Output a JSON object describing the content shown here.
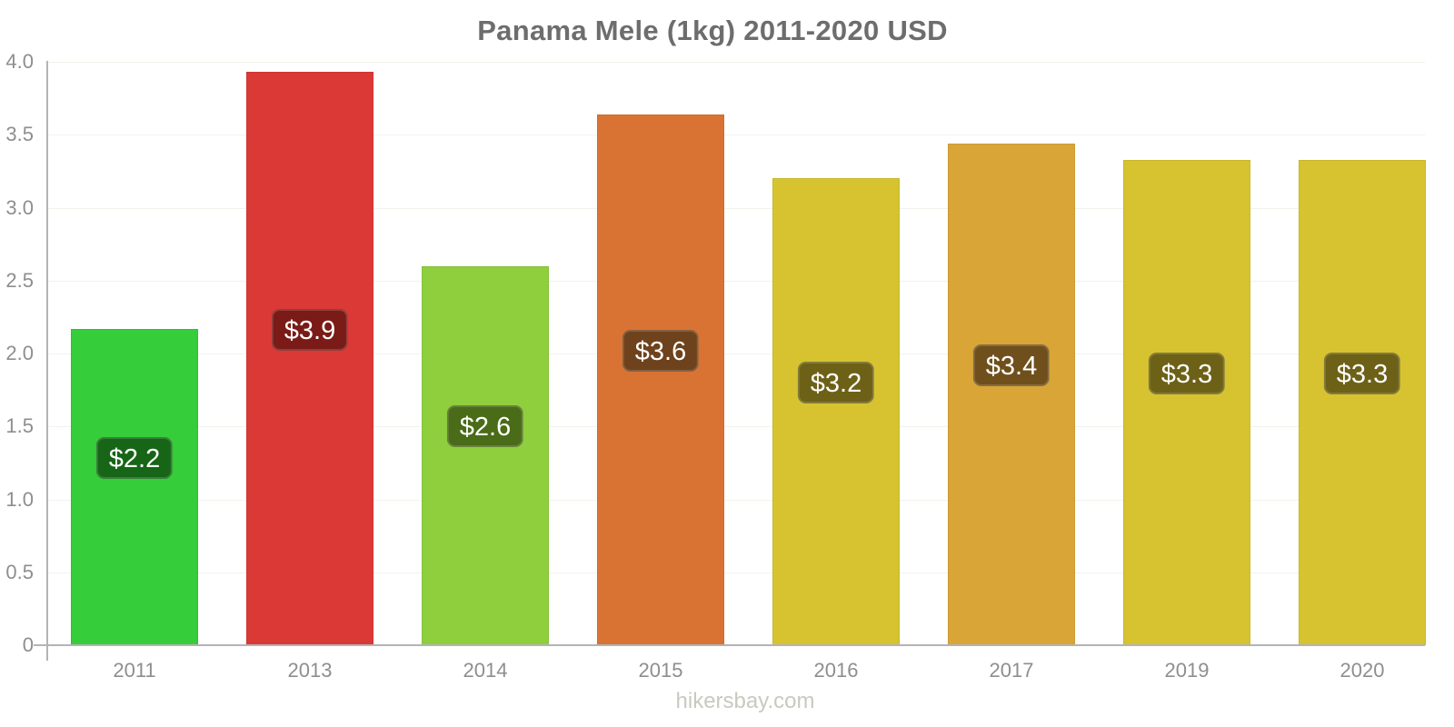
{
  "chart_data": {
    "type": "bar",
    "title": "Panama Mele (1kg) 2011-2020 USD",
    "categories": [
      "2011",
      "2013",
      "2014",
      "2015",
      "2016",
      "2017",
      "2019",
      "2020"
    ],
    "values": [
      2.17,
      3.93,
      2.6,
      3.64,
      3.2,
      3.44,
      3.33,
      3.33
    ],
    "bar_labels": [
      "$2.2",
      "$3.9",
      "$2.6",
      "$3.6",
      "$3.2",
      "$3.4",
      "$3.3",
      "$3.3"
    ],
    "bar_colors": [
      "#35cd39",
      "#da3936",
      "#8fce3d",
      "#d97333",
      "#d6c32f",
      "#d9a537",
      "#d6c32f",
      "#d6c32f"
    ],
    "label_box_colors": [
      "#176517",
      "#7a1b17",
      "#4a6b17",
      "#6e421c",
      "#6d6117",
      "#6f501d",
      "#6d6117",
      "#6d6117"
    ],
    "xlabel": "",
    "ylabel": "",
    "ylim": [
      0,
      4
    ],
    "ytick_labels": [
      "0",
      "0.5",
      "1.0",
      "1.5",
      "2.0",
      "2.5",
      "3.0",
      "3.5",
      "4.0"
    ],
    "grid": "horizontal",
    "legend": "none"
  },
  "footer": {
    "source_label": "hikersbay.com"
  },
  "colors": {
    "background": "#ffffff",
    "title_text": "#6d6d6d",
    "axis_line": "#b4b4b4",
    "tick_text": "#8e8e8e",
    "grid_line": "#f2f2ec",
    "value_text": "#ffffff",
    "watermark_text": "#c9c9c0"
  }
}
